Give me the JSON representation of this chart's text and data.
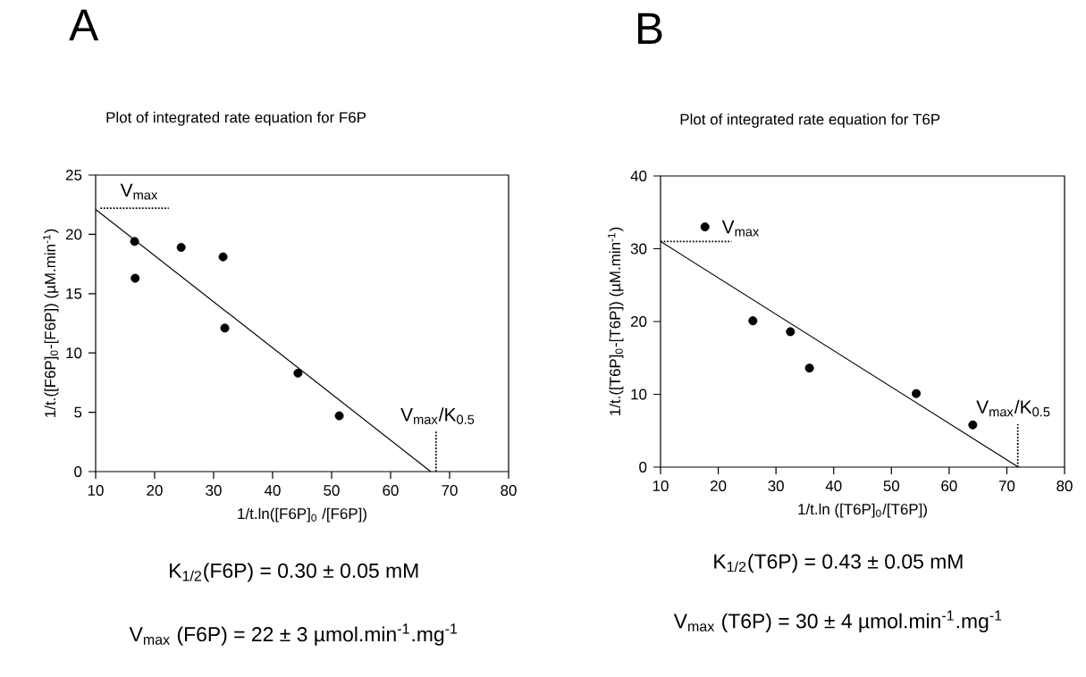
{
  "chart_data": [
    {
      "type": "scatter",
      "title": "A",
      "subtitle": "Plot of integrated rate equation for F6P",
      "xlabel": "1/t.ln([F6P]$_{0}$ /[F6P])",
      "ylabel": "1/t.([F6P]$_{0}$-[F6P]) (µM.min$^{-1}$)",
      "marker": "circle",
      "xlim": [
        10,
        80
      ],
      "ylim": [
        0,
        25
      ],
      "xticks": [
        10,
        20,
        30,
        40,
        50,
        60,
        70,
        80
      ],
      "yticks": [
        0,
        5,
        10,
        15,
        20,
        25
      ],
      "series": [
        {
          "color": "#000000",
          "x": [
            16.6,
            16.7,
            24.5,
            31.6,
            31.9,
            44.3,
            51.3
          ],
          "values": [
            19.4,
            16.3,
            18.9,
            18.1,
            12.1,
            8.3,
            4.7
          ]
        },
        {
          "type": "line",
          "color": "#000000",
          "marker": "none",
          "line_style": "solid",
          "x": [
            10,
            66.8
          ],
          "values": [
            22.1,
            0
          ]
        },
        {
          "type": "line",
          "color": "#000000",
          "marker": "none",
          "line_style": "dotted",
          "x": [
            10.8,
            22.4
          ],
          "values": [
            22.2,
            22.2
          ]
        },
        {
          "type": "line",
          "color": "#000000",
          "marker": "none",
          "line_style": "dotted",
          "x": [
            67.7,
            67.7
          ],
          "values": [
            0,
            3.5
          ]
        }
      ],
      "annotations": [
        "V$_{max}$",
        "V$_{max}$/K$_{0.5}$",
        "K$_{1/2}$(F6P) = 0.30 ± 0.05 mM",
        "V$_{max}$ (F6P) = 22 ± 3 µmol.min$^{-1}$.mg$^{-1}$"
      ]
    },
    {
      "type": "scatter",
      "title": "B",
      "subtitle": "Plot of integrated rate equation for T6P",
      "xlabel": "1/t.ln ([T6P]$_{0}$/[T6P])",
      "ylabel": "1/t.([T6P]$_{0}$-[T6P]) (µM.min$^{-1}$)",
      "marker": "circle",
      "xlim": [
        10,
        80
      ],
      "ylim": [
        0,
        40
      ],
      "xticks": [
        10,
        20,
        30,
        40,
        50,
        60,
        70,
        80
      ],
      "yticks": [
        0,
        10,
        20,
        30,
        40
      ],
      "series": [
        {
          "color": "#000000",
          "x": [
            17.7,
            26.0,
            32.5,
            35.8,
            54.3,
            64.1
          ],
          "values": [
            33.0,
            20.1,
            18.6,
            13.6,
            10.1,
            5.8
          ]
        },
        {
          "type": "line",
          "color": "#000000",
          "marker": "none",
          "line_style": "solid",
          "x": [
            10,
            72.0
          ],
          "values": [
            31.0,
            0
          ]
        },
        {
          "type": "line",
          "color": "#000000",
          "marker": "none",
          "line_style": "dotted",
          "x": [
            10,
            22.3
          ],
          "values": [
            31.0,
            31.0
          ]
        },
        {
          "type": "line",
          "color": "#000000",
          "marker": "none",
          "line_style": "dotted",
          "x": [
            71.9,
            71.9
          ],
          "values": [
            0,
            5.9
          ]
        }
      ],
      "annotations": [
        "V$_{max}$",
        "V$_{max}$/K$_{0.5}$",
        "K$_{1/2}$(T6P) = 0.43 ± 0.05 mM",
        "V$_{max}$ (T6P) = 30 ± 4 µmol.min$^{-1}$.mg$^{-1}$"
      ]
    }
  ]
}
